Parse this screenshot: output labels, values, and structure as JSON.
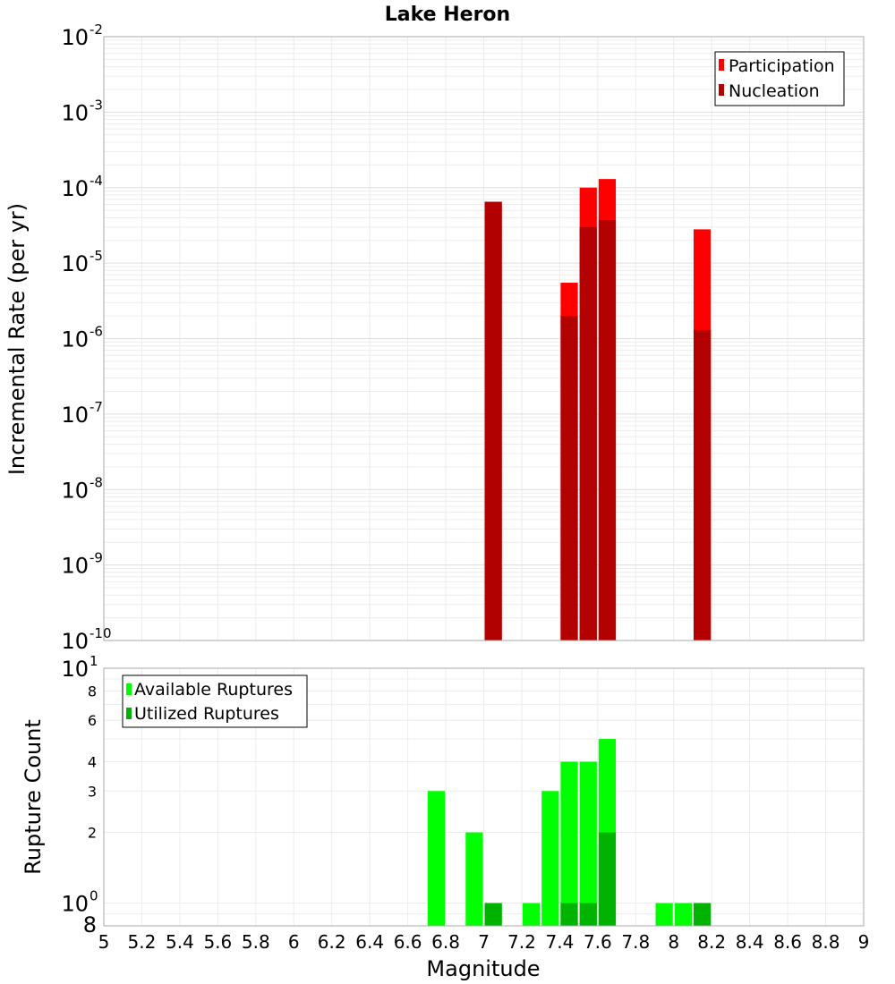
{
  "chart_data": [
    {
      "type": "bar",
      "title": "Lake Heron",
      "xlabel": "Magnitude",
      "ylabel": "Incremental Rate (per yr)",
      "yscale": "log",
      "ylim": [
        1e-10,
        0.01
      ],
      "xlim": [
        5,
        9
      ],
      "bar_width": 0.1,
      "grid": true,
      "legend_position": "top-right",
      "series": [
        {
          "name": "Participation",
          "color": "#ff0000",
          "x": [
            7.05,
            7.45,
            7.55,
            7.65,
            8.15
          ],
          "values": [
            6.5e-05,
            5.5e-06,
            0.0001,
            0.00013,
            2.8e-05
          ]
        },
        {
          "name": "Nucleation",
          "color": "#b30000",
          "x": [
            7.05,
            7.45,
            7.55,
            7.65,
            8.15
          ],
          "values": [
            6.5e-05,
            2e-06,
            3e-05,
            3.7e-05,
            1.3e-06
          ]
        }
      ]
    },
    {
      "type": "bar",
      "xlabel": "Magnitude",
      "ylabel": "Rupture Count",
      "yscale": "log",
      "ylim": [
        0.8,
        10
      ],
      "xlim": [
        5,
        9
      ],
      "bar_width": 0.1,
      "grid": true,
      "legend_position": "top-left",
      "series": [
        {
          "name": "Available Ruptures",
          "color": "#00ff00",
          "x": [
            6.75,
            6.95,
            7.05,
            7.25,
            7.35,
            7.45,
            7.55,
            7.65,
            7.95,
            8.05,
            8.15
          ],
          "values": [
            3,
            2,
            1,
            1,
            3,
            4,
            4,
            5,
            1,
            1,
            1
          ]
        },
        {
          "name": "Utilized Ruptures",
          "color": "#00b300",
          "x": [
            7.05,
            7.45,
            7.55,
            7.65,
            8.15
          ],
          "values": [
            1,
            1,
            1,
            2,
            1
          ]
        }
      ]
    }
  ],
  "top_axis": {
    "ticks": [
      {
        "base": "10",
        "exp": "-2"
      },
      {
        "base": "10",
        "exp": "-3"
      },
      {
        "base": "10",
        "exp": "-4"
      },
      {
        "base": "10",
        "exp": "-5"
      },
      {
        "base": "10",
        "exp": "-6"
      },
      {
        "base": "10",
        "exp": "-7"
      },
      {
        "base": "10",
        "exp": "-8"
      },
      {
        "base": "10",
        "exp": "-9"
      },
      {
        "base": "10",
        "exp": "-10"
      }
    ]
  },
  "bottom_axis": {
    "major_ticks": [
      {
        "value": 10,
        "base": "10",
        "exp": "1"
      },
      {
        "value": 1,
        "base": "10",
        "exp": "0"
      }
    ],
    "minor_ticks": [
      {
        "value": 8,
        "label": "8"
      },
      {
        "value": 6,
        "label": "6"
      },
      {
        "value": 4,
        "label": "4"
      },
      {
        "value": 3,
        "label": "3"
      },
      {
        "value": 2,
        "label": "2"
      },
      {
        "value": 0.8,
        "label": "8"
      }
    ],
    "x_ticks": [
      "5",
      "5.2",
      "5.4",
      "5.6",
      "5.8",
      "6",
      "6.2",
      "6.4",
      "6.6",
      "6.8",
      "7",
      "7.2",
      "7.4",
      "7.6",
      "7.8",
      "8",
      "8.2",
      "8.4",
      "8.6",
      "8.8",
      "9"
    ]
  }
}
